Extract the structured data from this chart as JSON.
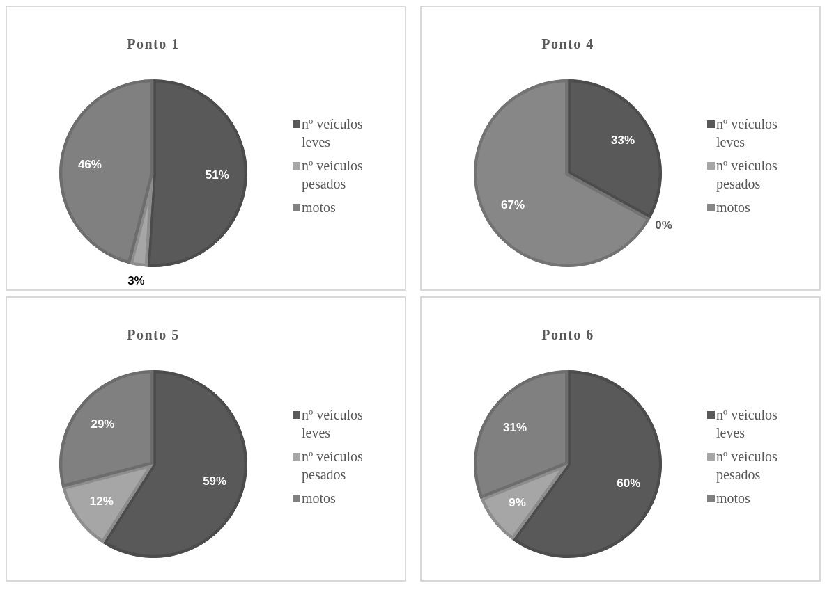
{
  "chart_data": [
    {
      "type": "pie",
      "title": "Ponto 1",
      "categories": [
        "nº veículos leves",
        "nº veículos pesados",
        "motos"
      ],
      "values": [
        51,
        3,
        46
      ],
      "value_labels": [
        "51%",
        "3%",
        "46%"
      ],
      "colors": [
        "#595959",
        "#a6a6a6",
        "#808080"
      ],
      "legend": "right"
    },
    {
      "type": "pie",
      "title": "Ponto 4",
      "categories": [
        "nº veículos leves",
        "nº veículos pesados",
        "motos"
      ],
      "values": [
        33,
        0,
        67
      ],
      "value_labels": [
        "33%",
        "0%",
        "67%"
      ],
      "colors": [
        "#595959",
        "#a6a6a6",
        "#878787"
      ],
      "legend": "right"
    },
    {
      "type": "pie",
      "title": "Ponto 5",
      "categories": [
        "nº veículos leves",
        "nº veículos pesados",
        "motos"
      ],
      "values": [
        59,
        12,
        29
      ],
      "value_labels": [
        "59%",
        "12%",
        "29%"
      ],
      "colors": [
        "#595959",
        "#a6a6a6",
        "#808080"
      ],
      "legend": "right"
    },
    {
      "type": "pie",
      "title": "Ponto 6",
      "categories": [
        "nº veículos leves",
        "nº veículos pesados",
        "motos"
      ],
      "values": [
        60,
        9,
        31
      ],
      "value_labels": [
        "60%",
        "9%",
        "31%"
      ],
      "colors": [
        "#595959",
        "#a6a6a6",
        "#808080"
      ],
      "legend": "right"
    }
  ]
}
